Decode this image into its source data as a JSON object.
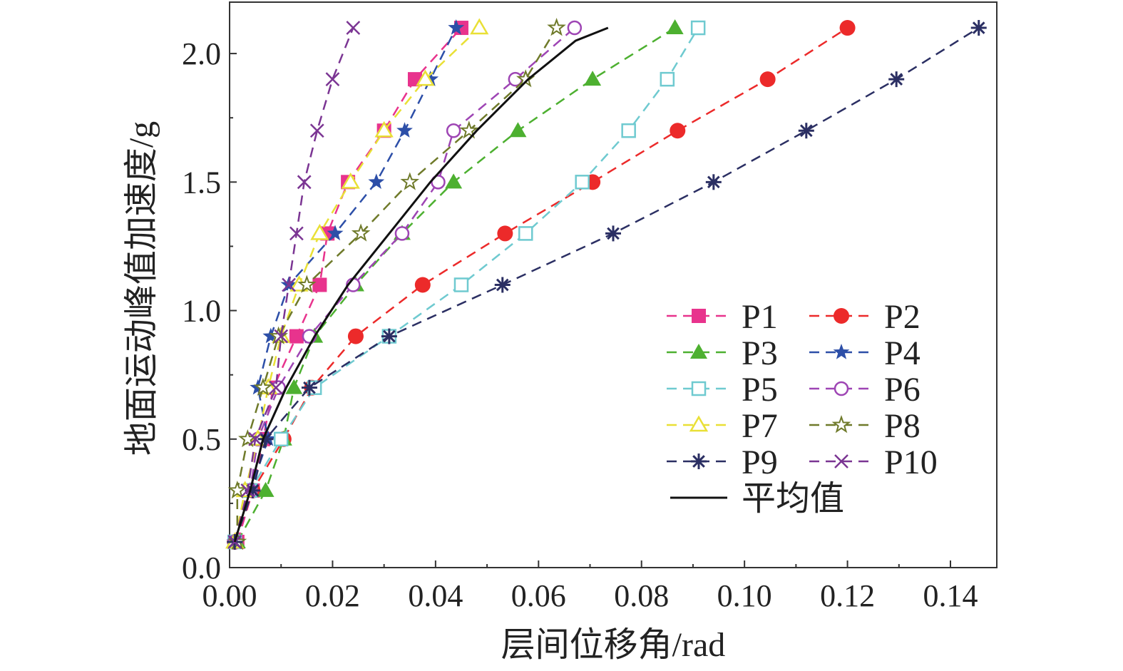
{
  "chart_data": {
    "type": "line",
    "xlabel": "层间位移角/rad",
    "ylabel": "地面运动峰值加速度/g",
    "xlim": [
      0,
      0.149
    ],
    "ylim": [
      0,
      2.2
    ],
    "x_ticks": [
      "0.00",
      "0.02",
      "0.04",
      "0.06",
      "0.08",
      "0.10",
      "0.12",
      "0.14"
    ],
    "y_ticks": [
      "0.0",
      "0.5",
      "1.0",
      "1.5",
      "2.0"
    ],
    "grid": false,
    "legend_position": "bottom-right",
    "y_levels": [
      0.1,
      0.3,
      0.5,
      0.7,
      0.9,
      1.1,
      1.3,
      1.5,
      1.7,
      1.9,
      2.1
    ],
    "series": [
      {
        "name": "P1",
        "color": "#e8338d",
        "marker": "square-filled",
        "x": [
          0.0015,
          0.0045,
          0.0065,
          0.0085,
          0.013,
          0.0175,
          0.019,
          0.023,
          0.03,
          0.036,
          0.045
        ]
      },
      {
        "name": "P2",
        "color": "#ec2a2a",
        "marker": "circle-filled",
        "x": [
          0.001,
          0.0045,
          0.0105,
          0.016,
          0.0245,
          0.0375,
          0.0535,
          0.0705,
          0.087,
          0.1045,
          0.12
        ]
      },
      {
        "name": "P3",
        "color": "#4db030",
        "marker": "triangle-filled",
        "x": [
          0.0015,
          0.007,
          0.0105,
          0.0125,
          0.0165,
          0.0245,
          0.0335,
          0.0435,
          0.056,
          0.0705,
          0.0865
        ]
      },
      {
        "name": "P4",
        "color": "#2d4fa8",
        "marker": "star-filled",
        "x": [
          0.001,
          0.004,
          0.0075,
          0.0055,
          0.008,
          0.0115,
          0.0205,
          0.0285,
          0.034,
          0.039,
          0.044
        ]
      },
      {
        "name": "P5",
        "color": "#6fcad0",
        "marker": "square-open",
        "x": [
          0.001,
          0.004,
          0.01,
          0.0165,
          0.031,
          0.045,
          0.0575,
          0.0685,
          0.0775,
          0.085,
          0.091
        ]
      },
      {
        "name": "P6",
        "color": "#9e45b4",
        "marker": "circle-open",
        "x": [
          0.001,
          0.004,
          0.0055,
          0.0095,
          0.0155,
          0.024,
          0.0335,
          0.0405,
          0.0435,
          0.0555,
          0.067
        ]
      },
      {
        "name": "P7",
        "color": "#e9e036",
        "marker": "triangle-open",
        "x": [
          0.001,
          0.003,
          0.0055,
          0.0075,
          0.01,
          0.0135,
          0.0175,
          0.0235,
          0.03,
          0.038,
          0.0485
        ]
      },
      {
        "name": "P8",
        "color": "#6f7a2a",
        "marker": "star-open",
        "x": [
          0.0015,
          0.0015,
          0.0035,
          0.0065,
          0.0095,
          0.015,
          0.0255,
          0.035,
          0.0465,
          0.0575,
          0.0635
        ]
      },
      {
        "name": "P9",
        "color": "#2b2f63",
        "marker": "asterisk",
        "x": [
          0.001,
          0.0045,
          0.007,
          0.0155,
          0.031,
          0.053,
          0.0745,
          0.094,
          0.112,
          0.1295,
          0.1455
        ]
      },
      {
        "name": "P10",
        "color": "#7b3593",
        "marker": "x",
        "x": [
          0.001,
          0.0035,
          0.005,
          0.009,
          0.01,
          0.0115,
          0.013,
          0.0145,
          0.017,
          0.02,
          0.024
        ]
      },
      {
        "name": "平均值",
        "color": "#111111",
        "marker": "none",
        "x": [
          0.001,
          0.004,
          0.0065,
          0.011,
          0.0165,
          0.023,
          0.031,
          0.039,
          0.048,
          0.058,
          0.0672,
          0.0735
        ],
        "y": [
          0.1,
          0.3,
          0.5,
          0.7,
          0.9,
          1.1,
          1.3,
          1.5,
          1.7,
          1.9,
          2.05,
          2.1
        ]
      }
    ]
  }
}
